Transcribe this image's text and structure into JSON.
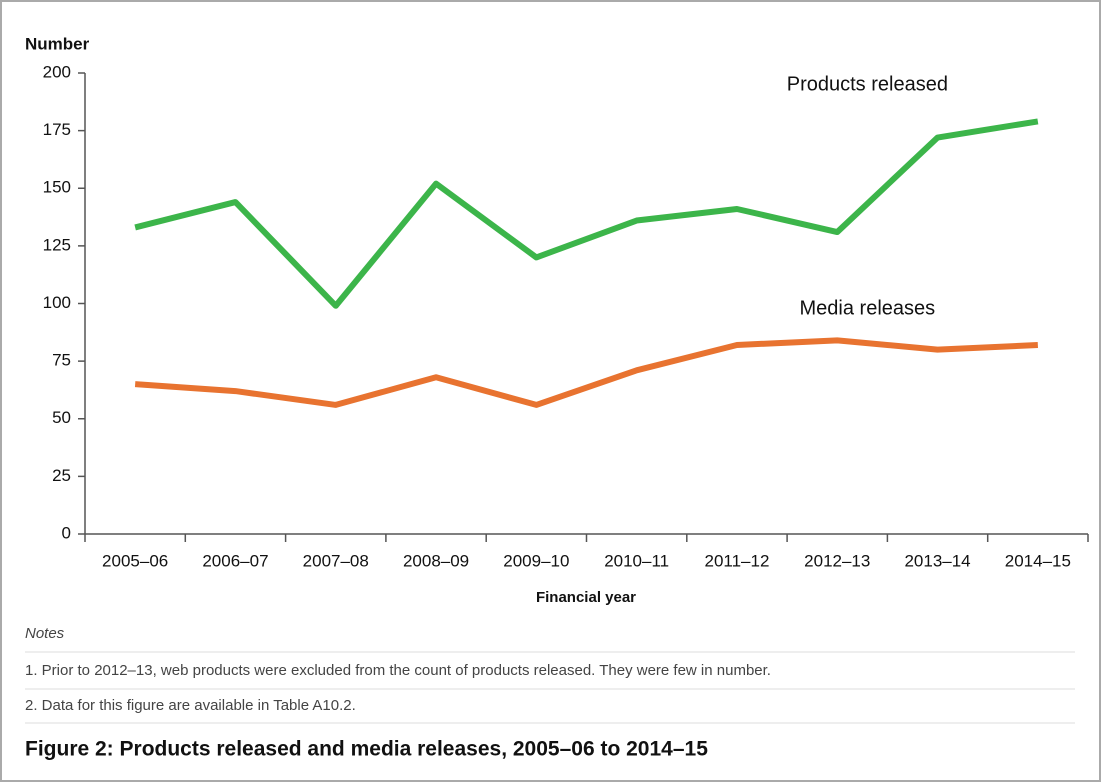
{
  "chart_data": {
    "type": "line",
    "y_label": "Number",
    "x_label": "Financial year",
    "categories": [
      "2005–06",
      "2006–07",
      "2007–08",
      "2008–09",
      "2009–10",
      "2010–11",
      "2011–12",
      "2012–13",
      "2013–14",
      "2014–15"
    ],
    "series": [
      {
        "name": "Products released",
        "color": "#3cb54a",
        "values": [
          133,
          144,
          99,
          152,
          120,
          136,
          141,
          131,
          172,
          179
        ]
      },
      {
        "name": "Media releases",
        "color": "#e87330",
        "values": [
          65,
          62,
          56,
          68,
          56,
          71,
          82,
          84,
          80,
          82
        ]
      }
    ],
    "ylim": [
      0,
      200
    ],
    "yticks": [
      0,
      25,
      50,
      75,
      100,
      125,
      150,
      175,
      200
    ],
    "notes_heading": "Notes",
    "notes": [
      "1.  Prior to 2012–13, web products were excluded from the count of products released. They were few in number.",
      "2.  Data for this figure are available in Table A10.2."
    ],
    "caption": "Figure 2: Products released and media releases, 2005–06 to 2014–15"
  }
}
